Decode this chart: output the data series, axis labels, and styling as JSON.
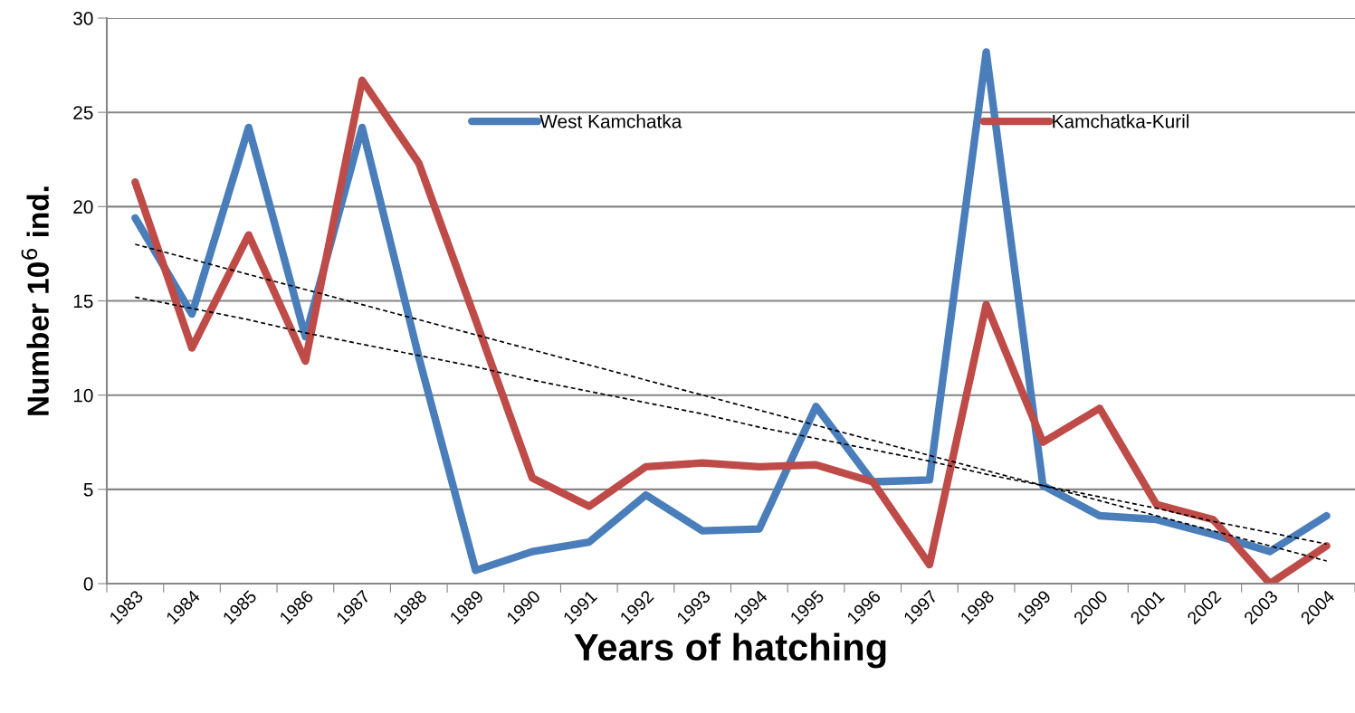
{
  "chart_data": {
    "type": "line",
    "xlabel": "Years of hatching",
    "ylabel": "Number 10$^{6}$ ind.",
    "categories": [
      "1983",
      "1984",
      "1985",
      "1986",
      "1987",
      "1988",
      "1989",
      "1990",
      "1991",
      "1992",
      "1993",
      "1994",
      "1995",
      "1996",
      "1997",
      "1998",
      "1999",
      "2000",
      "2001",
      "2002",
      "2003",
      "2004"
    ],
    "series": [
      {
        "name": "West Kamchatka",
        "color": "#4a7ebb",
        "values": [
          19.4,
          14.3,
          24.2,
          13.1,
          24.2,
          12.0,
          0.7,
          1.7,
          2.2,
          4.7,
          2.8,
          2.9,
          9.4,
          5.4,
          5.5,
          28.2,
          5.2,
          3.6,
          3.4,
          2.6,
          1.7,
          3.6
        ]
      },
      {
        "name": "Kamchatka-Kuril",
        "color": "#be4b48",
        "values": [
          21.3,
          12.5,
          18.5,
          11.8,
          26.7,
          22.3,
          14.0,
          5.6,
          4.1,
          6.2,
          6.4,
          6.2,
          6.3,
          5.4,
          1.0,
          14.8,
          7.5,
          9.3,
          4.2,
          3.4,
          0.0,
          2.0
        ]
      },
      {
        "type": "line",
        "color": "#000000",
        "line_style": "dashed",
        "values": [
          18.0,
          17.2,
          16.4,
          15.6,
          14.8,
          14.0,
          13.2,
          12.4,
          11.6,
          10.8,
          10.0,
          9.2,
          8.4,
          7.6,
          6.8,
          6.0,
          5.2,
          4.4,
          3.6,
          2.8,
          2.0,
          1.2
        ]
      },
      {
        "type": "line",
        "color": "#000000",
        "line_style": "dashed",
        "values": [
          15.2,
          14.6,
          14.0,
          13.3,
          12.7,
          12.1,
          11.5,
          10.8,
          10.2,
          9.6,
          9.0,
          8.3,
          7.7,
          7.1,
          6.5,
          5.8,
          5.2,
          4.6,
          4.0,
          3.3,
          2.7,
          2.1
        ]
      }
    ],
    "ylim": [
      0,
      30
    ],
    "yticks": [
      0,
      5,
      10,
      15,
      20,
      25,
      30
    ],
    "grid": "y",
    "legend": "top",
    "marker": "none",
    "line_style": "solid"
  }
}
